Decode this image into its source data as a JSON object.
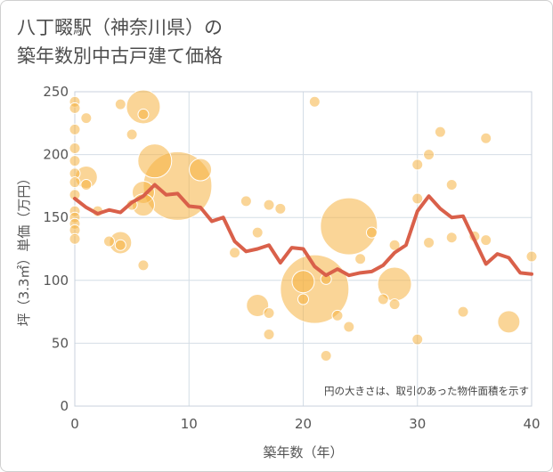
{
  "title_lines": [
    "八丁畷駅（神奈川県）の",
    "築年数別中古戸建て価格"
  ],
  "colors": {
    "bubble": "#f5b342",
    "line": "#d9604a",
    "grid": "#d4dde6",
    "plot_border": "#c8d2dc"
  },
  "chart_data": {
    "type": "scatter",
    "title": "八丁畷駅（神奈川県）の築年数別中古戸建て価格",
    "xlabel": "築年数（年）",
    "ylabel": "坪（3.3㎡）単価（万円）",
    "xlim": [
      0,
      40
    ],
    "ylim": [
      0,
      250
    ],
    "x_ticks": [
      0,
      10,
      20,
      30,
      40
    ],
    "y_ticks": [
      0,
      50,
      100,
      150,
      200,
      250
    ],
    "grid": true,
    "note": "円の大きさは、取引のあった物件面積を示す",
    "bubbles": [
      {
        "x": 0,
        "y": 242,
        "s": 1
      },
      {
        "x": 0,
        "y": 237,
        "s": 1
      },
      {
        "x": 0,
        "y": 220,
        "s": 1
      },
      {
        "x": 0,
        "y": 205,
        "s": 1
      },
      {
        "x": 0,
        "y": 195,
        "s": 1
      },
      {
        "x": 0,
        "y": 185,
        "s": 1
      },
      {
        "x": 0,
        "y": 178,
        "s": 1
      },
      {
        "x": 0,
        "y": 168,
        "s": 1
      },
      {
        "x": 0,
        "y": 155,
        "s": 1
      },
      {
        "x": 0,
        "y": 150,
        "s": 1
      },
      {
        "x": 0,
        "y": 145,
        "s": 1
      },
      {
        "x": 0,
        "y": 140,
        "s": 1
      },
      {
        "x": 0,
        "y": 133,
        "s": 1
      },
      {
        "x": 1,
        "y": 229,
        "s": 1
      },
      {
        "x": 1,
        "y": 182,
        "s": 2
      },
      {
        "x": 1,
        "y": 176,
        "s": 1
      },
      {
        "x": 2,
        "y": 155,
        "s": 1
      },
      {
        "x": 3,
        "y": 131,
        "s": 1
      },
      {
        "x": 4,
        "y": 240,
        "s": 1
      },
      {
        "x": 4,
        "y": 130,
        "s": 2
      },
      {
        "x": 4,
        "y": 128,
        "s": 1
      },
      {
        "x": 5,
        "y": 216,
        "s": 1
      },
      {
        "x": 5,
        "y": 160,
        "s": 1
      },
      {
        "x": 6,
        "y": 238,
        "s": 3
      },
      {
        "x": 6,
        "y": 232,
        "s": 1
      },
      {
        "x": 6,
        "y": 170,
        "s": 2
      },
      {
        "x": 6,
        "y": 160,
        "s": 2
      },
      {
        "x": 6,
        "y": 112,
        "s": 1
      },
      {
        "x": 7,
        "y": 195,
        "s": 3
      },
      {
        "x": 9,
        "y": 175,
        "s": 6
      },
      {
        "x": 11,
        "y": 188,
        "s": 2
      },
      {
        "x": 14,
        "y": 122,
        "s": 1
      },
      {
        "x": 15,
        "y": 163,
        "s": 1
      },
      {
        "x": 16,
        "y": 138,
        "s": 1
      },
      {
        "x": 16,
        "y": 80,
        "s": 2
      },
      {
        "x": 17,
        "y": 160,
        "s": 1
      },
      {
        "x": 17,
        "y": 74,
        "s": 1
      },
      {
        "x": 17,
        "y": 57,
        "s": 1
      },
      {
        "x": 18,
        "y": 157,
        "s": 1
      },
      {
        "x": 20,
        "y": 99,
        "s": 2
      },
      {
        "x": 20,
        "y": 85,
        "s": 1
      },
      {
        "x": 21,
        "y": 242,
        "s": 1
      },
      {
        "x": 21,
        "y": 93,
        "s": 6
      },
      {
        "x": 22,
        "y": 101,
        "s": 1
      },
      {
        "x": 22,
        "y": 40,
        "s": 1
      },
      {
        "x": 23,
        "y": 72,
        "s": 1
      },
      {
        "x": 24,
        "y": 143,
        "s": 5
      },
      {
        "x": 24,
        "y": 63,
        "s": 1
      },
      {
        "x": 25,
        "y": 117,
        "s": 1
      },
      {
        "x": 26,
        "y": 138,
        "s": 1
      },
      {
        "x": 27,
        "y": 85,
        "s": 1
      },
      {
        "x": 28,
        "y": 128,
        "s": 1
      },
      {
        "x": 28,
        "y": 97,
        "s": 3
      },
      {
        "x": 28,
        "y": 81,
        "s": 1
      },
      {
        "x": 30,
        "y": 192,
        "s": 1
      },
      {
        "x": 30,
        "y": 165,
        "s": 1
      },
      {
        "x": 30,
        "y": 53,
        "s": 1
      },
      {
        "x": 31,
        "y": 200,
        "s": 1
      },
      {
        "x": 31,
        "y": 130,
        "s": 1
      },
      {
        "x": 32,
        "y": 218,
        "s": 1
      },
      {
        "x": 33,
        "y": 176,
        "s": 1
      },
      {
        "x": 33,
        "y": 134,
        "s": 1
      },
      {
        "x": 34,
        "y": 75,
        "s": 1
      },
      {
        "x": 35,
        "y": 135,
        "s": 1
      },
      {
        "x": 36,
        "y": 213,
        "s": 1
      },
      {
        "x": 36,
        "y": 132,
        "s": 1
      },
      {
        "x": 38,
        "y": 67,
        "s": 2
      },
      {
        "x": 40,
        "y": 119,
        "s": 1
      }
    ],
    "line": {
      "x": [
        0,
        1,
        2,
        3,
        4,
        5,
        6,
        7,
        8,
        9,
        10,
        11,
        12,
        13,
        14,
        15,
        16,
        17,
        18,
        19,
        20,
        21,
        22,
        23,
        24,
        25,
        26,
        27,
        28,
        29,
        30,
        31,
        32,
        33,
        34,
        35,
        36,
        37,
        38,
        39,
        40
      ],
      "y": [
        165,
        158,
        153,
        156,
        154,
        162,
        167,
        176,
        168,
        169,
        159,
        158,
        147,
        150,
        131,
        123,
        125,
        128,
        114,
        126,
        125,
        111,
        104,
        109,
        104,
        106,
        107,
        112,
        122,
        128,
        155,
        167,
        157,
        150,
        151,
        132,
        113,
        121,
        118,
        106,
        105
      ]
    }
  }
}
